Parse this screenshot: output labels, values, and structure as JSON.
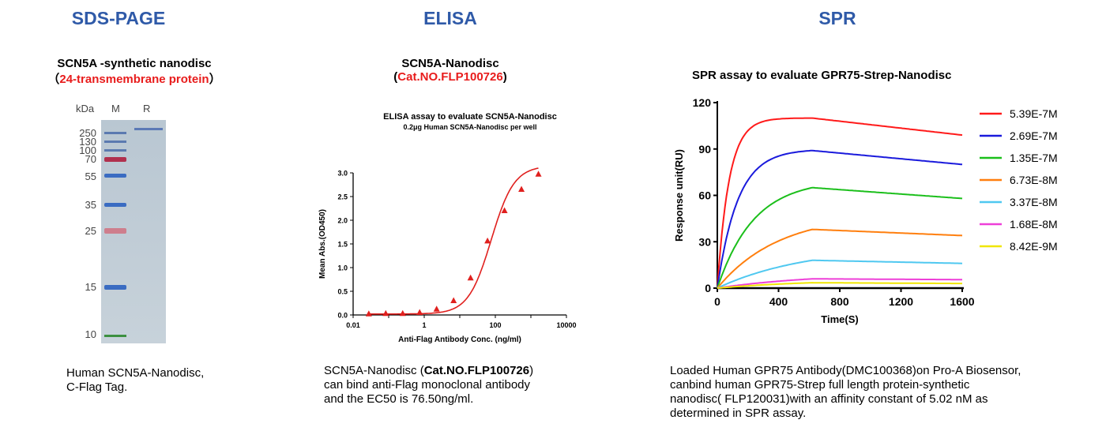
{
  "sds": {
    "heading": "SDS-PAGE",
    "title_line1": "SCN5A -synthetic nanodisc",
    "title_line2_open": "（",
    "title_line2_red": "24-transmembrane protein",
    "title_line2_close": "）",
    "kda_label": "kDa",
    "lane_m": "M",
    "lane_r": "R",
    "markers": [
      "250",
      "130",
      "100",
      "70",
      "55",
      "35",
      "25",
      "15",
      "10"
    ],
    "caption_line1": "Human SCN5A-Nanodisc,",
    "caption_line2": "C-Flag Tag."
  },
  "elisa": {
    "heading": "ELISA",
    "title_line1": "SCN5A-Nanodisc",
    "title_line2_open": "(",
    "title_line2_red": "Cat.NO.FLP100726",
    "title_line2_close": ")",
    "caption_pre": "SCN5A-Nanodisc (",
    "caption_bold": "Cat.NO.FLP100726",
    "caption_post": ")",
    "caption_line2": "can bind anti-Flag monoclonal antibody",
    "caption_line3": "and the EC50 is 76.50ng/ml."
  },
  "spr": {
    "heading": "SPR",
    "caption_line1": "Loaded Human GPR75 Antibody(DMC100368)on Pro-A Biosensor,",
    "caption_line2": "canbind human GPR75-Strep full length protein-synthetic",
    "caption_line3": "nanodisc( FLP120031)with an affinity constant of 5.02 nM as",
    "caption_line4": "determined in SPR assay."
  },
  "chart_data": [
    {
      "type": "scatter",
      "title": "ELISA assay to evaluate SCN5A-Nanodisc",
      "subtitle": "0.2μg Human SCN5A-Nanodisc per well",
      "xlabel": "Anti-Flag Antibody Conc. (ng/ml)",
      "ylabel": "Mean Abs.(OD450)",
      "xscale": "log",
      "xlim": [
        0.01,
        10000
      ],
      "xticks": [
        "0.01",
        "1",
        "100",
        "10000"
      ],
      "ylim": [
        0,
        3.0
      ],
      "yticks": [
        "0.0",
        "0.5",
        "1.0",
        "1.5",
        "2.0",
        "2.5",
        "3.0"
      ],
      "color": "#e0201e",
      "series": [
        {
          "x": [
            0.0276,
            0.0827,
            0.248,
            0.744,
            2.23,
            6.7,
            20.1,
            60.3,
            181,
            543,
            1630
          ],
          "y": [
            0.02,
            0.03,
            0.03,
            0.05,
            0.12,
            0.3,
            0.78,
            1.56,
            2.2,
            2.65,
            2.97
          ]
        }
      ],
      "fit": {
        "model": "4PL",
        "bottom": 0.02,
        "top": 3.15,
        "ec50": 76.5,
        "hill": 1.35
      }
    },
    {
      "type": "line",
      "title": "SPR assay to evaluate GPR75-Strep-Nanodisc",
      "xlabel": "Time(S)",
      "ylabel": "Response unit(RU)",
      "xlim": [
        0,
        1600
      ],
      "xticks": [
        "0",
        "400",
        "800",
        "1200",
        "1600"
      ],
      "ylim": [
        0,
        120
      ],
      "yticks": [
        "0",
        "30",
        "60",
        "90",
        "120"
      ],
      "legend_position": "right",
      "association_end": 620,
      "series": [
        {
          "name": "5.39E-7M",
          "color": "#ff1a1a",
          "peak": 110,
          "end": 99,
          "k": 0.013
        },
        {
          "name": "2.69E-7M",
          "color": "#1a1adc",
          "peak": 89,
          "end": 80,
          "k": 0.0075
        },
        {
          "name": "1.35E-7M",
          "color": "#1bbf1b",
          "peak": 65,
          "end": 58,
          "k": 0.0042
        },
        {
          "name": "6.73E-8M",
          "color": "#ff7f0e",
          "peak": 38,
          "end": 34,
          "k": 0.0025
        },
        {
          "name": "3.37E-8M",
          "color": "#4fc8f0",
          "peak": 18,
          "end": 16,
          "k": 0.0017
        },
        {
          "name": "1.68E-8M",
          "color": "#ee3fd8",
          "peak": 6,
          "end": 5.5,
          "k": 0.0015
        },
        {
          "name": "8.42E-9M",
          "color": "#f0e600",
          "peak": 3.5,
          "end": 3,
          "k": 0.0015
        }
      ]
    }
  ]
}
